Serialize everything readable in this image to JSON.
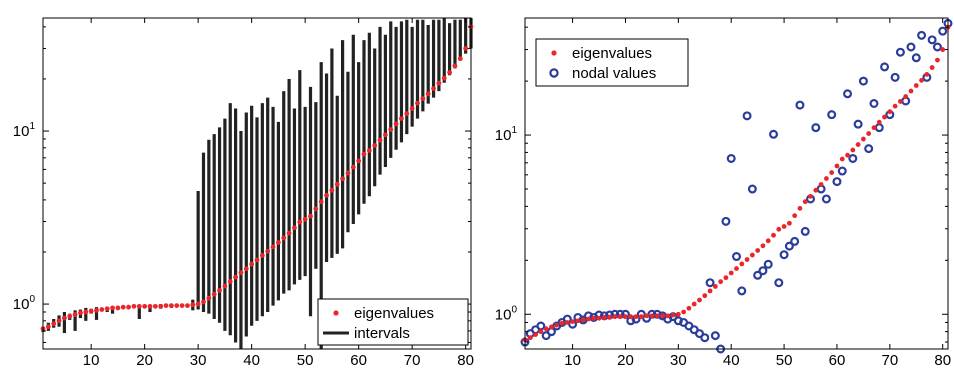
{
  "chart_data": [
    {
      "type": "scatter",
      "title": "",
      "xlabel": "",
      "ylabel": "",
      "xlim": [
        1,
        81
      ],
      "ylim": [
        0.55,
        45
      ],
      "yscale": "log",
      "x_ticks": [
        "10",
        "20",
        "30",
        "40",
        "50",
        "60",
        "70",
        "80"
      ],
      "y_ticks": [
        {
          "base": "10",
          "exp": "0"
        },
        {
          "base": "10",
          "exp": "1"
        }
      ],
      "legend_position": "bottom-right",
      "series": [
        {
          "name": "eigenvalues",
          "color": "#e8262c",
          "marker": "dot",
          "x": [
            1,
            2,
            3,
            4,
            5,
            6,
            7,
            8,
            9,
            10,
            11,
            12,
            13,
            14,
            15,
            16,
            17,
            18,
            19,
            20,
            21,
            22,
            23,
            24,
            25,
            26,
            27,
            28,
            29,
            30,
            31,
            32,
            33,
            34,
            35,
            36,
            37,
            38,
            39,
            40,
            41,
            42,
            43,
            44,
            45,
            46,
            47,
            48,
            49,
            50,
            51,
            52,
            53,
            54,
            55,
            56,
            57,
            58,
            59,
            60,
            61,
            62,
            63,
            64,
            65,
            66,
            67,
            68,
            69,
            70,
            71,
            72,
            73,
            74,
            75,
            76,
            77,
            78,
            79,
            80,
            81
          ],
          "y": [
            0.72,
            0.74,
            0.77,
            0.8,
            0.83,
            0.85,
            0.87,
            0.89,
            0.9,
            0.91,
            0.92,
            0.93,
            0.94,
            0.95,
            0.95,
            0.96,
            0.96,
            0.97,
            0.97,
            0.97,
            0.97,
            0.97,
            0.97,
            0.98,
            0.98,
            0.98,
            0.98,
            0.98,
            0.99,
            1.0,
            1.03,
            1.08,
            1.14,
            1.2,
            1.27,
            1.35,
            1.43,
            1.52,
            1.6,
            1.7,
            1.8,
            1.91,
            2.02,
            2.14,
            2.27,
            2.41,
            2.57,
            2.76,
            2.98,
            3.09,
            3.22,
            3.55,
            3.9,
            4.25,
            4.55,
            4.92,
            5.3,
            5.72,
            6.18,
            6.72,
            7.35,
            7.72,
            8.25,
            8.85,
            9.5,
            10.2,
            11.0,
            11.8,
            12.6,
            13.5,
            14.5,
            15.4,
            16.4,
            17.6,
            18.9,
            20.2,
            21.8,
            23.8,
            26.2,
            30.0,
            40.0
          ]
        },
        {
          "name": "intervals",
          "color": "#222222",
          "marker": "vertical-line",
          "x": [
            1,
            2,
            3,
            4,
            5,
            6,
            7,
            8,
            9,
            10,
            11,
            12,
            13,
            14,
            15,
            16,
            17,
            18,
            19,
            20,
            21,
            22,
            23,
            24,
            25,
            26,
            27,
            28,
            29,
            30,
            31,
            32,
            33,
            34,
            35,
            36,
            37,
            38,
            39,
            40,
            41,
            42,
            43,
            44,
            45,
            46,
            47,
            48,
            49,
            50,
            51,
            52,
            53,
            54,
            55,
            56,
            57,
            58,
            59,
            60,
            61,
            62,
            63,
            64,
            65,
            66,
            67,
            68,
            69,
            70,
            71,
            72,
            73,
            74,
            75,
            76,
            77,
            78,
            79,
            80,
            81
          ],
          "low": [
            0.69,
            0.7,
            0.73,
            0.74,
            0.68,
            0.81,
            0.7,
            0.83,
            0.8,
            0.88,
            0.81,
            0.92,
            0.9,
            0.88,
            0.93,
            0.95,
            0.94,
            0.96,
            0.82,
            0.97,
            0.9,
            0.97,
            0.94,
            0.98,
            0.95,
            0.98,
            0.96,
            0.96,
            0.92,
            0.93,
            0.9,
            0.88,
            0.82,
            0.78,
            0.7,
            0.66,
            0.6,
            0.52,
            0.65,
            0.75,
            0.8,
            0.85,
            0.9,
            0.98,
            1.05,
            1.15,
            1.2,
            1.3,
            1.38,
            1.45,
            0.85,
            1.6,
            0.52,
            1.75,
            1.85,
            1.95,
            2.1,
            2.6,
            2.9,
            3.3,
            3.8,
            4.2,
            4.8,
            5.6,
            6.2,
            7.0,
            7.8,
            8.6,
            9.6,
            10.6,
            11.8,
            13.0,
            14.4,
            15.6,
            17.0,
            19.0,
            21.0,
            23.0,
            26.0,
            28.0,
            30.0
          ],
          "high": [
            0.74,
            0.78,
            0.82,
            0.86,
            0.9,
            0.88,
            0.92,
            0.93,
            0.95,
            0.94,
            0.96,
            0.95,
            0.96,
            0.97,
            0.97,
            0.97,
            0.98,
            0.98,
            0.99,
            0.98,
            0.99,
            0.99,
            1.0,
            0.99,
            1.0,
            1.0,
            1.0,
            1.0,
            1.06,
            4.5,
            7.5,
            8.9,
            9.6,
            10.5,
            11.8,
            14.5,
            13.5,
            10.0,
            12.8,
            14.0,
            12.0,
            14.5,
            15.6,
            13.8,
            11.3,
            17.0,
            20.0,
            13.5,
            22.5,
            13.8,
            18.0,
            14.7,
            25.0,
            21.5,
            30.0,
            16.0,
            33.5,
            22.0,
            36.0,
            25.0,
            33.5,
            37.0,
            30.0,
            40.0,
            36.0,
            43.0,
            40.0,
            43.0,
            44.0,
            40.0,
            44.0,
            44.0,
            41.0,
            44.0,
            44.0,
            45.0,
            42.0,
            44.0,
            44.0,
            45.0,
            45.0
          ]
        }
      ]
    },
    {
      "type": "scatter",
      "title": "",
      "xlabel": "",
      "ylabel": "",
      "xlim": [
        1,
        81
      ],
      "ylim": [
        0.64,
        45
      ],
      "yscale": "log",
      "x_ticks": [
        "10",
        "20",
        "30",
        "40",
        "50",
        "60",
        "70",
        "80"
      ],
      "y_ticks": [
        {
          "base": "10",
          "exp": "0"
        },
        {
          "base": "10",
          "exp": "1"
        }
      ],
      "legend_position": "top-left",
      "series": [
        {
          "name": "eigenvalues",
          "color": "#e8262c",
          "marker": "dot",
          "x": [
            1,
            2,
            3,
            4,
            5,
            6,
            7,
            8,
            9,
            10,
            11,
            12,
            13,
            14,
            15,
            16,
            17,
            18,
            19,
            20,
            21,
            22,
            23,
            24,
            25,
            26,
            27,
            28,
            29,
            30,
            31,
            32,
            33,
            34,
            35,
            36,
            37,
            38,
            39,
            40,
            41,
            42,
            43,
            44,
            45,
            46,
            47,
            48,
            49,
            50,
            51,
            52,
            53,
            54,
            55,
            56,
            57,
            58,
            59,
            60,
            61,
            62,
            63,
            64,
            65,
            66,
            67,
            68,
            69,
            70,
            71,
            72,
            73,
            74,
            75,
            76,
            77,
            78,
            79,
            80,
            81
          ],
          "y": [
            0.72,
            0.74,
            0.77,
            0.8,
            0.83,
            0.85,
            0.87,
            0.89,
            0.9,
            0.91,
            0.92,
            0.93,
            0.94,
            0.95,
            0.95,
            0.96,
            0.96,
            0.97,
            0.97,
            0.97,
            0.97,
            0.97,
            0.97,
            0.98,
            0.98,
            0.98,
            0.98,
            0.98,
            0.99,
            1.0,
            1.03,
            1.08,
            1.14,
            1.2,
            1.27,
            1.35,
            1.43,
            1.52,
            1.6,
            1.7,
            1.8,
            1.91,
            2.02,
            2.14,
            2.27,
            2.41,
            2.57,
            2.76,
            2.98,
            3.09,
            3.22,
            3.55,
            3.9,
            4.25,
            4.55,
            4.92,
            5.3,
            5.72,
            6.18,
            6.72,
            7.35,
            7.72,
            8.25,
            8.85,
            9.5,
            10.2,
            11.0,
            11.8,
            12.6,
            13.5,
            14.5,
            15.4,
            16.4,
            17.6,
            18.9,
            20.2,
            21.8,
            23.8,
            26.2,
            30.0,
            40.0
          ]
        },
        {
          "name": "nodal values",
          "color": "#2b3d9b",
          "marker": "circle",
          "x": [
            1,
            2,
            3,
            4,
            5,
            6,
            7,
            8,
            9,
            10,
            11,
            12,
            13,
            14,
            15,
            16,
            17,
            18,
            19,
            20,
            21,
            22,
            23,
            24,
            25,
            26,
            27,
            28,
            29,
            30,
            31,
            32,
            33,
            34,
            35,
            36,
            37,
            38,
            39,
            40,
            41,
            42,
            43,
            44,
            45,
            46,
            47,
            48,
            49,
            50,
            51,
            52,
            53,
            54,
            55,
            56,
            57,
            58,
            59,
            60,
            61,
            62,
            63,
            64,
            65,
            66,
            67,
            68,
            69,
            70,
            71,
            72,
            73,
            74,
            75,
            76,
            77,
            78,
            79,
            80,
            81
          ],
          "y": [
            0.7,
            0.78,
            0.82,
            0.86,
            0.76,
            0.8,
            0.86,
            0.9,
            0.94,
            0.88,
            0.96,
            0.93,
            0.98,
            0.96,
            0.99,
            0.98,
            0.99,
            1.0,
            1.0,
            1.0,
            0.92,
            0.94,
            1.0,
            0.95,
            1.0,
            1.0,
            0.98,
            0.94,
            0.97,
            0.92,
            0.9,
            0.86,
            0.82,
            0.78,
            0.74,
            1.5,
            0.76,
            0.64,
            3.3,
            7.4,
            2.1,
            1.35,
            12.8,
            5.0,
            1.65,
            1.75,
            1.9,
            10.1,
            1.5,
            2.15,
            2.4,
            2.55,
            14.7,
            2.9,
            4.4,
            11.0,
            5.0,
            4.4,
            13.0,
            5.5,
            6.3,
            17.0,
            7.4,
            11.5,
            20.0,
            8.4,
            15.0,
            11.0,
            24.0,
            13.0,
            21.0,
            29.0,
            15.5,
            31.0,
            27.0,
            36.0,
            21.0,
            34.0,
            31.0,
            38.0,
            42.0
          ]
        }
      ]
    }
  ]
}
